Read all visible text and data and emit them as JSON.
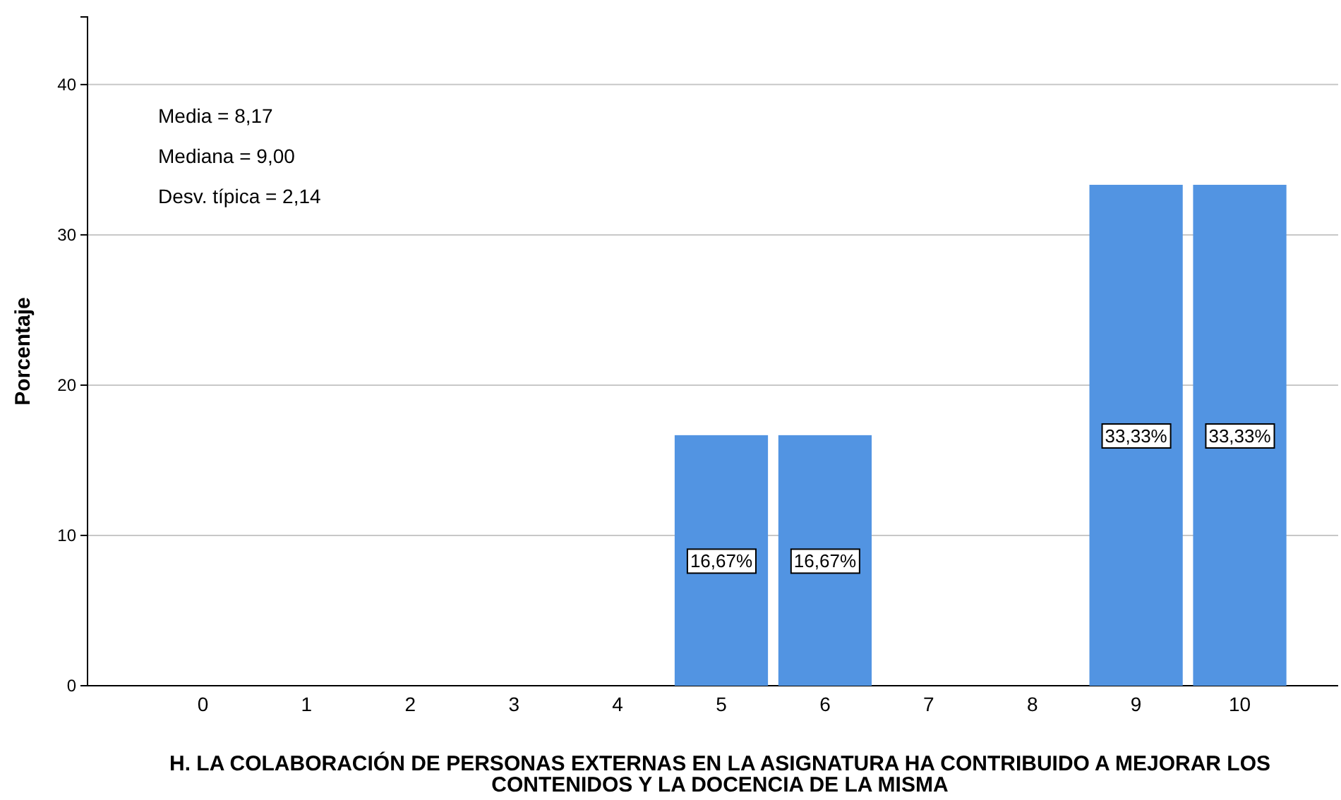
{
  "chart_data": {
    "type": "bar",
    "categories": [
      "0",
      "1",
      "2",
      "3",
      "4",
      "5",
      "6",
      "7",
      "8",
      "9",
      "10"
    ],
    "values": [
      0,
      0,
      0,
      0,
      0,
      16.67,
      16.67,
      0,
      0,
      33.33,
      33.33
    ],
    "value_labels": [
      null,
      null,
      null,
      null,
      null,
      "16,67%",
      "16,67%",
      null,
      null,
      "33,33%",
      "33,33%"
    ],
    "color": "#5294e2",
    "ylabel": "Porcentaje",
    "xlabel": "H. LA COLABORACIÓN DE PERSONAS EXTERNAS EN LA ASIGNATURA HA CONTRIBUIDO A MEJORAR LOS CONTENIDOS Y LA DOCENCIA DE LA MISMA",
    "ylim": [
      0,
      44.5
    ],
    "yticks": [
      0,
      10,
      20,
      30,
      40
    ],
    "grid": "y",
    "annotations": [
      "Media = 8,17",
      "Mediana = 9,00",
      "Desv. típica = 2,14"
    ]
  }
}
